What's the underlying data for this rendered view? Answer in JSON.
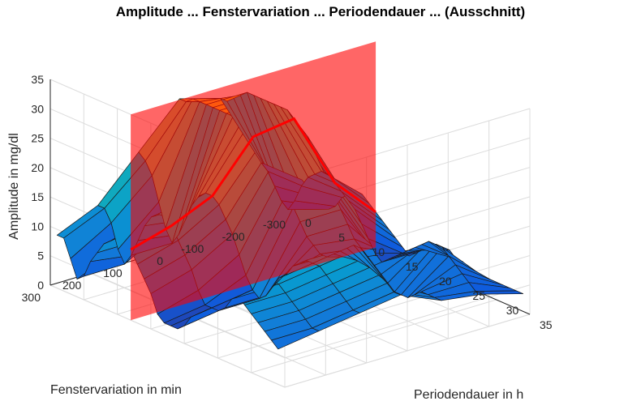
{
  "chart_data": {
    "type": "surface3d",
    "title": "Amplitude ... Fenstervariation ... Periodendauer ... (Ausschnitt)",
    "xlabel": "Periodendauer in h",
    "ylabel": "Fenstervariation in min",
    "zlabel": "Amplitude in mg/dl",
    "xlim": [
      0,
      35
    ],
    "ylim": [
      -300,
      300
    ],
    "zlim": [
      0,
      35
    ],
    "x_ticks": [
      "0",
      "5",
      "10",
      "15",
      "20",
      "25",
      "30",
      "35"
    ],
    "y_ticks": [
      "-300",
      "-200",
      "-100",
      "0",
      "100",
      "200",
      "300"
    ],
    "z_ticks": [
      "0",
      "5",
      "10",
      "15",
      "20",
      "25",
      "30",
      "35"
    ],
    "grid": true,
    "colormap": "parula",
    "slice_plane": {
      "x": 12,
      "color": "#ff0000",
      "opacity": 0.6
    },
    "x": [
      1,
      2,
      3,
      4,
      5,
      6,
      7,
      8,
      9,
      10,
      11,
      12,
      13,
      14,
      15,
      16,
      17,
      18,
      19,
      20,
      21,
      22,
      23,
      24,
      25,
      26,
      27,
      28,
      29,
      30,
      31,
      32,
      33,
      34
    ],
    "series": [
      {
        "y": 300,
        "z": [
          9,
          9,
          6,
          3,
          4,
          7,
          9,
          11,
          12,
          13,
          13,
          12,
          10,
          8,
          6,
          3,
          2,
          2,
          2,
          3,
          5,
          6,
          7,
          8,
          9,
          10,
          11,
          12,
          11,
          10,
          9,
          8,
          7,
          6
        ]
      },
      {
        "y": 200,
        "z": [
          12,
          12,
          10,
          6,
          4,
          6,
          9,
          12,
          14,
          15,
          15,
          14,
          12,
          10,
          8,
          5,
          3,
          3,
          3,
          4,
          6,
          7,
          8,
          9,
          10,
          11,
          12,
          12,
          11,
          10,
          9,
          8,
          7,
          7
        ]
      },
      {
        "y": 100,
        "z": [
          19,
          18,
          16,
          12,
          8,
          6,
          8,
          11,
          14,
          16,
          17,
          17,
          16,
          14,
          12,
          9,
          6,
          4,
          3,
          4,
          6,
          8,
          9,
          11,
          12,
          13,
          13,
          13,
          12,
          11,
          10,
          9,
          8,
          8
        ]
      },
      {
        "y": 0,
        "z": [
          26,
          26,
          27,
          27,
          27,
          27,
          27,
          27,
          27,
          26,
          26,
          25,
          24,
          23,
          22,
          20,
          18,
          16,
          14,
          12,
          11,
          10,
          10,
          11,
          12,
          13,
          14,
          14,
          13,
          12,
          11,
          10,
          9,
          9
        ]
      },
      {
        "y": -100,
        "z": [
          24,
          24,
          25,
          26,
          27,
          27,
          27,
          27,
          27,
          27,
          27,
          26,
          25,
          24,
          22,
          20,
          18,
          16,
          14,
          12,
          10,
          9,
          8,
          7,
          6,
          5,
          4,
          4,
          4,
          5,
          6,
          6,
          6,
          6
        ]
      },
      {
        "y": -200,
        "z": [
          11,
          10,
          8,
          6,
          5,
          7,
          10,
          12,
          13,
          14,
          14,
          13,
          12,
          11,
          10,
          8,
          6,
          4,
          3,
          4,
          5,
          6,
          7,
          8,
          9,
          10,
          10,
          10,
          9,
          8,
          7,
          6,
          5,
          5
        ]
      },
      {
        "y": -300,
        "z": [
          6,
          5,
          4,
          3,
          3,
          4,
          6,
          7,
          8,
          8,
          7,
          6,
          5,
          4,
          3,
          2,
          1,
          2,
          3,
          4,
          5,
          5,
          5,
          4,
          4,
          3,
          3,
          3,
          3,
          3,
          3,
          3,
          3,
          3
        ]
      }
    ]
  }
}
